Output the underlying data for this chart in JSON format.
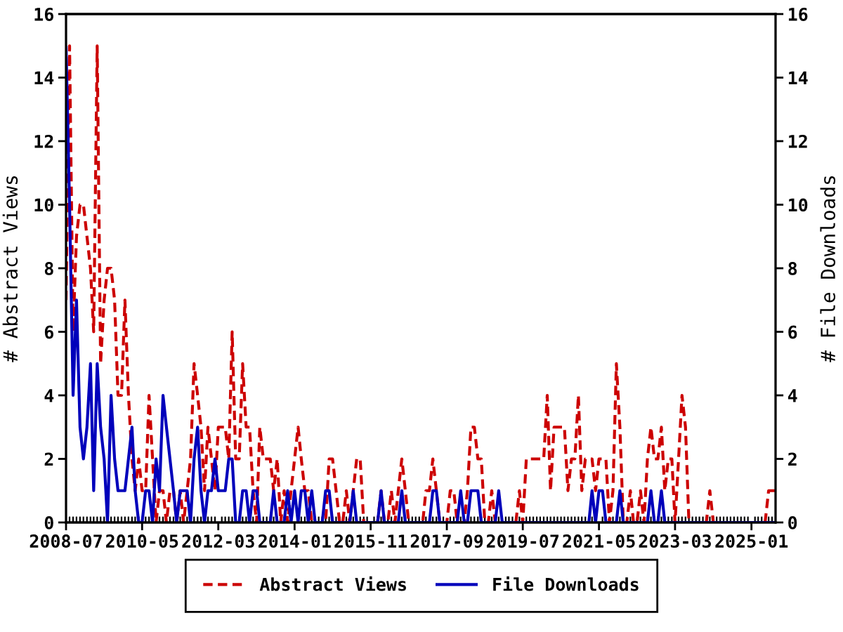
{
  "chart_data": {
    "type": "line",
    "ylabel": "# Abstract Views",
    "y2label": "# File Downloads",
    "xlim": [
      "2008-07",
      "2025-08"
    ],
    "xticks": [
      "2008-07",
      {
        "value": "2008-08",
        "label": null
      },
      {
        "value": "2008-09",
        "label": null
      },
      {
        "value": "2008-10",
        "label": null
      },
      {
        "value": "2008-11",
        "label": null
      },
      {
        "value": "2008-12",
        "label": null
      },
      {
        "value": "2009-01",
        "label": null
      },
      {
        "value": "2009-02",
        "label": null
      },
      {
        "value": "2009-03",
        "label": null
      },
      {
        "value": "2009-04",
        "label": null
      },
      {
        "value": "2009-05",
        "label": null
      },
      {
        "value": "2009-06",
        "label": null
      },
      {
        "value": "2009-07",
        "label": null
      },
      {
        "value": "2009-08",
        "label": null
      },
      {
        "value": "2009-09",
        "label": null
      },
      {
        "value": "2009-10",
        "label": null
      },
      {
        "value": "2009-11",
        "label": null
      },
      {
        "value": "2009-12",
        "label": null
      },
      {
        "value": "2010-01",
        "label": null
      },
      {
        "value": "2010-02",
        "label": null
      },
      {
        "value": "2010-03",
        "label": null
      },
      {
        "value": "2010-04",
        "label": null
      },
      "2010-05",
      {
        "value": "2010-06",
        "label": null
      },
      {
        "value": "2010-07",
        "label": null
      },
      {
        "value": "2010-08",
        "label": null
      },
      {
        "value": "2010-09",
        "label": null
      },
      {
        "value": "2010-10",
        "label": null
      },
      {
        "value": "2010-11",
        "label": null
      },
      {
        "value": "2010-12",
        "label": null
      },
      {
        "value": "2011-01",
        "label": null
      },
      {
        "value": "2011-02",
        "label": null
      },
      {
        "value": "2011-03",
        "label": null
      },
      {
        "value": "2011-04",
        "label": null
      },
      {
        "value": "2011-05",
        "label": null
      },
      {
        "value": "2011-06",
        "label": null
      },
      {
        "value": "2011-07",
        "label": null
      },
      {
        "value": "2011-08",
        "label": null
      },
      {
        "value": "2011-09",
        "label": null
      },
      {
        "value": "2011-10",
        "label": null
      },
      {
        "value": "2011-11",
        "label": null
      },
      {
        "value": "2011-12",
        "label": null
      },
      {
        "value": "2012-01",
        "label": null
      },
      {
        "value": "2012-02",
        "label": null
      },
      "2012-03",
      {
        "value": "2012-04",
        "label": null
      },
      {
        "value": "2012-05",
        "label": null
      },
      {
        "value": "2012-06",
        "label": null
      },
      {
        "value": "2012-07",
        "label": null
      },
      {
        "value": "2012-08",
        "label": null
      },
      {
        "value": "2012-09",
        "label": null
      },
      {
        "value": "2012-10",
        "label": null
      },
      {
        "value": "2012-11",
        "label": null
      },
      {
        "value": "2012-12",
        "label": null
      },
      {
        "value": "2013-01",
        "label": null
      },
      {
        "value": "2013-02",
        "label": null
      },
      {
        "value": "2013-03",
        "label": null
      },
      {
        "value": "2013-04",
        "label": null
      },
      {
        "value": "2013-05",
        "label": null
      },
      {
        "value": "2013-06",
        "label": null
      },
      {
        "value": "2013-07",
        "label": null
      },
      {
        "value": "2013-08",
        "label": null
      },
      {
        "value": "2013-09",
        "label": null
      },
      {
        "value": "2013-10",
        "label": null
      },
      {
        "value": "2013-11",
        "label": null
      },
      {
        "value": "2013-12",
        "label": null
      },
      "2014-01",
      {
        "value": "2014-02",
        "label": null
      },
      {
        "value": "2014-03",
        "label": null
      },
      {
        "value": "2014-04",
        "label": null
      },
      {
        "value": "2014-05",
        "label": null
      },
      {
        "value": "2014-06",
        "label": null
      },
      {
        "value": "2014-07",
        "label": null
      },
      {
        "value": "2014-08",
        "label": null
      },
      {
        "value": "2014-09",
        "label": null
      },
      {
        "value": "2014-10",
        "label": null
      },
      {
        "value": "2014-11",
        "label": null
      },
      {
        "value": "2014-12",
        "label": null
      },
      {
        "value": "2015-01",
        "label": null
      },
      {
        "value": "2015-02",
        "label": null
      },
      {
        "value": "2015-03",
        "label": null
      },
      {
        "value": "2015-04",
        "label": null
      },
      {
        "value": "2015-05",
        "label": null
      },
      {
        "value": "2015-06",
        "label": null
      },
      {
        "value": "2015-07",
        "label": null
      },
      {
        "value": "2015-08",
        "label": null
      },
      {
        "value": "2015-09",
        "label": null
      },
      {
        "value": "2015-10",
        "label": null
      },
      "2015-11",
      {
        "value": "2015-12",
        "label": null
      },
      {
        "value": "2016-01",
        "label": null
      },
      {
        "value": "2016-02",
        "label": null
      },
      {
        "value": "2016-03",
        "label": null
      },
      {
        "value": "2016-04",
        "label": null
      },
      {
        "value": "2016-05",
        "label": null
      },
      {
        "value": "2016-06",
        "label": null
      },
      {
        "value": "2016-07",
        "label": null
      },
      {
        "value": "2016-08",
        "label": null
      },
      {
        "value": "2016-09",
        "label": null
      },
      {
        "value": "2016-10",
        "label": null
      },
      {
        "value": "2016-11",
        "label": null
      },
      {
        "value": "2016-12",
        "label": null
      },
      {
        "value": "2017-01",
        "label": null
      },
      {
        "value": "2017-02",
        "label": null
      },
      {
        "value": "2017-03",
        "label": null
      },
      {
        "value": "2017-04",
        "label": null
      },
      {
        "value": "2017-05",
        "label": null
      },
      {
        "value": "2017-06",
        "label": null
      },
      {
        "value": "2017-07",
        "label": null
      },
      {
        "value": "2017-08",
        "label": null
      },
      "2017-09",
      {
        "value": "2017-10",
        "label": null
      },
      {
        "value": "2017-11",
        "label": null
      },
      {
        "value": "2017-12",
        "label": null
      },
      {
        "value": "2018-01",
        "label": null
      },
      {
        "value": "2018-02",
        "label": null
      },
      {
        "value": "2018-03",
        "label": null
      },
      {
        "value": "2018-04",
        "label": null
      },
      {
        "value": "2018-05",
        "label": null
      },
      {
        "value": "2018-06",
        "label": null
      },
      {
        "value": "2018-07",
        "label": null
      },
      {
        "value": "2018-08",
        "label": null
      },
      {
        "value": "2018-09",
        "label": null
      },
      {
        "value": "2018-10",
        "label": null
      },
      {
        "value": "2018-11",
        "label": null
      },
      {
        "value": "2018-12",
        "label": null
      },
      {
        "value": "2019-01",
        "label": null
      },
      {
        "value": "2019-02",
        "label": null
      },
      {
        "value": "2019-03",
        "label": null
      },
      {
        "value": "2019-04",
        "label": null
      },
      {
        "value": "2019-05",
        "label": null
      },
      {
        "value": "2019-06",
        "label": null
      },
      "2019-07",
      {
        "value": "2019-08",
        "label": null
      },
      {
        "value": "2019-09",
        "label": null
      },
      {
        "value": "2019-10",
        "label": null
      },
      {
        "value": "2019-11",
        "label": null
      },
      {
        "value": "2019-12",
        "label": null
      },
      {
        "value": "2020-01",
        "label": null
      },
      {
        "value": "2020-02",
        "label": null
      },
      {
        "value": "2020-03",
        "label": null
      },
      {
        "value": "2020-04",
        "label": null
      },
      {
        "value": "2020-05",
        "label": null
      },
      {
        "value": "2020-06",
        "label": null
      },
      {
        "value": "2020-07",
        "label": null
      },
      {
        "value": "2020-08",
        "label": null
      },
      {
        "value": "2020-09",
        "label": null
      },
      {
        "value": "2020-10",
        "label": null
      },
      {
        "value": "2020-11",
        "label": null
      },
      {
        "value": "2020-12",
        "label": null
      },
      {
        "value": "2021-01",
        "label": null
      },
      {
        "value": "2021-02",
        "label": null
      },
      {
        "value": "2021-03",
        "label": null
      },
      {
        "value": "2021-04",
        "label": null
      },
      "2021-05",
      {
        "value": "2021-06",
        "label": null
      },
      {
        "value": "2021-07",
        "label": null
      },
      {
        "value": "2021-08",
        "label": null
      },
      {
        "value": "2021-09",
        "label": null
      },
      {
        "value": "2021-10",
        "label": null
      },
      {
        "value": "2021-11",
        "label": null
      },
      {
        "value": "2021-12",
        "label": null
      },
      {
        "value": "2022-01",
        "label": null
      },
      {
        "value": "2022-02",
        "label": null
      },
      {
        "value": "2022-03",
        "label": null
      },
      {
        "value": "2022-04",
        "label": null
      },
      {
        "value": "2022-05",
        "label": null
      },
      {
        "value": "2022-06",
        "label": null
      },
      {
        "value": "2022-07",
        "label": null
      },
      {
        "value": "2022-08",
        "label": null
      },
      {
        "value": "2022-09",
        "label": null
      },
      {
        "value": "2022-10",
        "label": null
      },
      {
        "value": "2022-11",
        "label": null
      },
      {
        "value": "2022-12",
        "label": null
      },
      {
        "value": "2023-01",
        "label": null
      },
      {
        "value": "2023-02",
        "label": null
      },
      "2023-03",
      {
        "value": "2023-04",
        "label": null
      },
      {
        "value": "2023-05",
        "label": null
      },
      {
        "value": "2023-06",
        "label": null
      },
      {
        "value": "2023-07",
        "label": null
      },
      {
        "value": "2023-08",
        "label": null
      },
      {
        "value": "2023-09",
        "label": null
      },
      {
        "value": "2023-10",
        "label": null
      },
      {
        "value": "2023-11",
        "label": null
      },
      {
        "value": "2023-12",
        "label": null
      },
      {
        "value": "2024-01",
        "label": null
      },
      {
        "value": "2024-02",
        "label": null
      },
      {
        "value": "2024-03",
        "label": null
      },
      {
        "value": "2024-04",
        "label": null
      },
      {
        "value": "2024-05",
        "label": null
      },
      {
        "value": "2024-06",
        "label": null
      },
      {
        "value": "2024-07",
        "label": null
      },
      {
        "value": "2024-08",
        "label": null
      },
      {
        "value": "2024-09",
        "label": null
      },
      {
        "value": "2024-10",
        "label": null
      },
      {
        "value": "2024-11",
        "label": null
      },
      {
        "value": "2024-12",
        "label": null
      },
      "2025-01",
      {
        "value": "2025-02",
        "label": null
      },
      {
        "value": "2025-03",
        "label": null
      },
      {
        "value": "2025-04",
        "label": null
      },
      {
        "value": "2025-05",
        "label": null
      },
      {
        "value": "2025-06",
        "label": null
      },
      {
        "value": "2025-07",
        "label": null
      }
    ],
    "ylim": [
      0,
      16
    ],
    "yticks": [
      0,
      2,
      4,
      6,
      8,
      10,
      12,
      14,
      16
    ],
    "y2lim": [
      0,
      16
    ],
    "y2ticks": [
      0,
      2,
      4,
      6,
      8,
      10,
      12,
      14,
      16
    ],
    "legend": "bottom",
    "marker": "none",
    "series": [
      {
        "name": "Abstract Views",
        "color": "#cc0000",
        "line_style": "dashed",
        "axis": "y",
        "x": [
          "2008-07",
          "2008-08",
          "2008-09",
          "2008-10",
          "2008-11",
          "2008-12",
          "2009-01",
          "2009-02",
          "2009-03",
          "2009-04",
          "2009-05",
          "2009-06",
          "2009-07",
          "2009-08",
          "2009-09",
          "2009-10",
          "2009-11",
          "2009-12",
          "2010-01",
          "2010-02",
          "2010-03",
          "2010-04",
          "2010-05",
          "2010-06",
          "2010-07",
          "2010-08",
          "2010-09",
          "2010-10",
          "2010-11",
          "2010-12",
          "2011-01",
          "2011-02",
          "2011-03",
          "2011-04",
          "2011-05",
          "2011-06",
          "2011-07",
          "2011-08",
          "2011-09",
          "2011-10",
          "2011-11",
          "2011-12",
          "2012-01",
          "2012-02",
          "2012-03",
          "2012-05",
          "2012-06",
          "2012-07",
          "2012-08",
          "2012-09",
          "2012-10",
          "2012-11",
          "2012-12",
          "2013-01",
          "2013-02",
          "2013-03",
          "2013-04",
          "2013-06",
          "2013-07",
          "2013-08",
          "2013-09",
          "2013-10",
          "2013-11",
          "2013-12",
          "2014-01",
          "2014-02",
          "2014-03",
          "2014-04",
          "2014-05",
          "2014-06",
          "2014-10",
          "2014-11",
          "2014-12",
          "2015-01",
          "2015-02",
          "2015-03",
          "2015-04",
          "2015-05",
          "2015-06",
          "2015-07",
          "2015-08",
          "2015-09",
          "2016-01",
          "2016-02",
          "2016-03",
          "2016-04",
          "2016-05",
          "2016-06",
          "2016-07",
          "2016-08",
          "2016-09",
          "2016-10",
          "2017-02",
          "2017-03",
          "2017-04",
          "2017-05",
          "2017-06",
          "2017-07",
          "2017-09",
          "2017-10",
          "2017-11",
          "2017-12",
          "2018-02",
          "2018-03",
          "2018-04",
          "2018-05",
          "2018-06",
          "2018-07",
          "2018-08",
          "2018-09",
          "2018-10",
          "2018-11",
          "2019-05",
          "2019-06",
          "2019-07",
          "2019-08",
          "2020-01",
          "2020-02",
          "2020-03",
          "2020-04",
          "2020-07",
          "2020-08",
          "2020-09",
          "2020-10",
          "2020-11",
          "2020-12",
          "2021-01",
          "2021-03",
          "2021-04",
          "2021-05",
          "2021-07",
          "2021-08",
          "2021-09",
          "2021-10",
          "2021-11",
          "2021-12",
          "2022-01",
          "2022-02",
          "2022-03",
          "2022-04",
          "2022-05",
          "2022-06",
          "2022-07",
          "2022-08",
          "2022-09",
          "2022-10",
          "2022-11",
          "2022-12",
          "2023-01",
          "2023-02",
          "2023-03",
          "2023-04",
          "2023-05",
          "2023-06",
          "2023-07",
          "2023-12",
          "2024-01",
          "2024-02",
          "2025-05",
          "2025-06",
          "2025-08"
        ],
        "values": [
          7,
          15,
          6,
          9,
          10,
          10,
          9,
          8,
          6,
          15,
          5,
          7,
          8,
          8,
          7,
          4,
          4,
          7,
          4,
          2,
          1,
          2,
          1,
          1,
          4,
          2,
          0,
          1,
          1,
          0,
          1,
          1,
          0,
          1,
          0,
          1,
          2,
          5,
          4,
          3,
          1,
          3,
          2,
          1,
          3,
          3,
          2,
          6,
          2,
          2,
          5,
          3,
          3,
          1,
          0,
          3,
          2,
          2,
          1,
          2,
          0,
          1,
          0,
          1,
          2,
          3,
          2,
          1,
          1,
          0,
          0,
          2,
          2,
          1,
          0,
          0,
          1,
          0,
          1,
          2,
          2,
          0,
          0,
          1,
          0,
          0,
          1,
          0,
          1,
          2,
          1,
          0,
          0,
          1,
          1,
          2,
          1,
          0,
          0,
          1,
          1,
          0,
          0,
          1,
          3,
          3,
          2,
          2,
          0,
          0,
          1,
          0,
          0,
          1,
          0,
          2,
          2,
          4,
          1,
          3,
          3,
          1,
          2,
          2,
          4,
          1,
          2,
          2,
          1,
          2,
          2,
          0,
          1,
          5,
          3,
          0,
          0,
          1,
          0,
          0,
          1,
          0,
          2,
          3,
          2,
          2,
          3,
          1,
          2,
          2,
          0,
          2,
          4,
          3,
          0,
          0,
          1,
          0,
          0,
          1,
          1
        ]
      },
      {
        "name": "File Downloads",
        "color": "#0000bb",
        "line_style": "solid",
        "axis": "y2",
        "x": [
          "2008-07",
          "2008-08",
          "2008-09",
          "2008-10",
          "2008-11",
          "2008-12",
          "2009-01",
          "2009-02",
          "2009-03",
          "2009-04",
          "2009-05",
          "2009-06",
          "2009-07",
          "2009-08",
          "2009-09",
          "2009-10",
          "2009-12",
          "2010-01",
          "2010-02",
          "2010-03",
          "2010-04",
          "2010-05",
          "2010-06",
          "2010-07",
          "2010-08",
          "2010-09",
          "2010-10",
          "2010-11",
          "2010-12",
          "2011-01",
          "2011-02",
          "2011-03",
          "2011-04",
          "2011-06",
          "2011-07",
          "2011-08",
          "2011-09",
          "2011-10",
          "2011-11",
          "2011-12",
          "2012-01",
          "2012-02",
          "2012-03",
          "2012-05",
          "2012-06",
          "2012-07",
          "2012-08",
          "2012-09",
          "2012-10",
          "2012-11",
          "2012-12",
          "2013-01",
          "2013-02",
          "2013-03",
          "2013-06",
          "2013-07",
          "2013-08",
          "2013-10",
          "2013-11",
          "2013-12",
          "2014-01",
          "2014-02",
          "2014-03",
          "2014-04",
          "2014-05",
          "2014-06",
          "2014-07",
          "2014-09",
          "2014-10",
          "2014-11",
          "2014-12",
          "2015-05",
          "2015-06",
          "2015-07",
          "2016-01",
          "2016-02",
          "2016-03",
          "2016-07",
          "2016-08",
          "2016-09",
          "2017-04",
          "2017-05",
          "2017-06",
          "2017-07",
          "2017-12",
          "2018-01",
          "2018-02",
          "2018-03",
          "2018-04",
          "2018-06",
          "2018-07",
          "2018-11",
          "2018-12",
          "2019-01",
          "2021-02",
          "2021-03",
          "2021-04",
          "2021-05",
          "2021-06",
          "2021-07",
          "2021-10",
          "2021-11",
          "2021-12",
          "2022-07",
          "2022-08",
          "2022-09",
          "2022-10",
          "2022-11",
          "2022-12",
          "2025-08"
        ],
        "values": [
          15,
          10,
          4,
          7,
          3,
          2,
          3,
          5,
          1,
          5,
          3,
          2,
          0,
          4,
          2,
          1,
          1,
          2,
          3,
          1,
          0,
          0,
          1,
          1,
          0,
          2,
          1,
          4,
          3,
          2,
          1,
          0,
          1,
          1,
          0,
          2,
          3,
          1,
          0,
          1,
          1,
          2,
          1,
          1,
          2,
          2,
          0,
          0,
          1,
          1,
          0,
          1,
          1,
          0,
          0,
          1,
          0,
          0,
          1,
          0,
          1,
          0,
          1,
          1,
          0,
          1,
          0,
          0,
          1,
          1,
          0,
          0,
          1,
          0,
          0,
          1,
          0,
          0,
          1,
          0,
          0,
          1,
          1,
          0,
          0,
          1,
          0,
          0,
          1,
          1,
          0,
          0,
          1,
          0,
          0,
          1,
          0,
          1,
          1,
          0,
          0,
          1,
          0,
          0,
          1,
          0,
          0,
          1,
          0,
          0
        ]
      }
    ]
  }
}
